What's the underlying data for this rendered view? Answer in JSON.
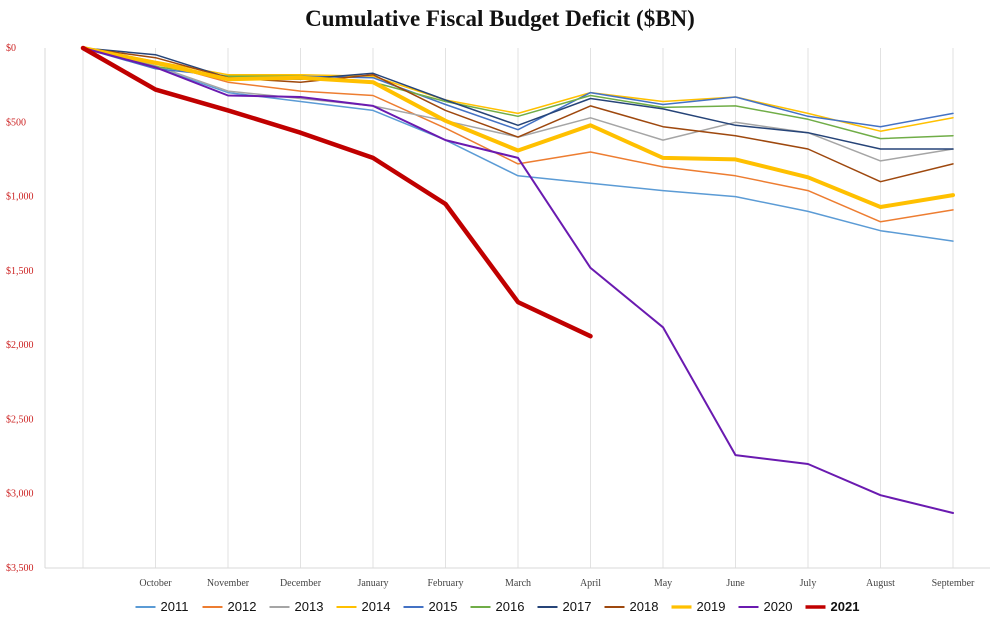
{
  "chart_data": {
    "type": "line",
    "title": "Cumulative Fiscal Budget Deficit ($BN)",
    "xlabel": "",
    "ylabel": "",
    "categories": [
      "",
      "October",
      "November",
      "December",
      "January",
      "February",
      "March",
      "April",
      "May",
      "June",
      "July",
      "August",
      "September"
    ],
    "y_tick_labels": [
      "$0",
      "$500",
      "$1,000",
      "$1,500",
      "$2,000",
      "$2,500",
      "$3,000",
      "$3,500"
    ],
    "y_tick_values": [
      0,
      -500,
      -1000,
      -1500,
      -2000,
      -2500,
      -3000,
      -3500
    ],
    "ylim": [
      -3500,
      0
    ],
    "grid": "vertical",
    "legend": "bottom",
    "series": [
      {
        "name": "2011",
        "color": "#5b9bd5",
        "width": 1.5,
        "values": [
          0,
          -130,
          -300,
          -360,
          -420,
          -620,
          -860,
          -910,
          -960,
          -1000,
          -1100,
          -1230,
          -1300
        ]
      },
      {
        "name": "2012",
        "color": "#ed7d31",
        "width": 1.5,
        "values": [
          0,
          -95,
          -230,
          -290,
          -320,
          -540,
          -780,
          -700,
          -800,
          -860,
          -960,
          -1170,
          -1090
        ]
      },
      {
        "name": "2013",
        "color": "#a5a5a5",
        "width": 1.5,
        "values": [
          0,
          -120,
          -290,
          -340,
          -390,
          -490,
          -600,
          -470,
          -620,
          -500,
          -570,
          -760,
          -680
        ]
      },
      {
        "name": "2014",
        "color": "#ffc000",
        "width": 1.5,
        "values": [
          0,
          -90,
          -180,
          -180,
          -190,
          -350,
          -440,
          -300,
          -360,
          -330,
          -440,
          -560,
          -470
        ]
      },
      {
        "name": "2015",
        "color": "#4472c4",
        "width": 1.5,
        "values": [
          0,
          -140,
          -190,
          -190,
          -200,
          -380,
          -550,
          -300,
          -380,
          -330,
          -460,
          -530,
          -440
        ]
      },
      {
        "name": "2016",
        "color": "#70ad47",
        "width": 1.5,
        "values": [
          0,
          -125,
          -190,
          -190,
          -230,
          -360,
          -460,
          -320,
          -400,
          -390,
          -480,
          -610,
          -590
        ]
      },
      {
        "name": "2017",
        "color": "#264478",
        "width": 1.5,
        "values": [
          0,
          -45,
          -200,
          -210,
          -170,
          -350,
          -520,
          -340,
          -410,
          -520,
          -570,
          -680,
          -680
        ]
      },
      {
        "name": "2018",
        "color": "#9e480e",
        "width": 1.5,
        "values": [
          0,
          -65,
          -200,
          -230,
          -180,
          -420,
          -600,
          -390,
          -530,
          -590,
          -680,
          -900,
          -780
        ]
      },
      {
        "name": "2019",
        "color": "#ffc000",
        "width": 4,
        "values": [
          0,
          -100,
          -210,
          -200,
          -230,
          -490,
          -690,
          -520,
          -740,
          -750,
          -870,
          -1070,
          -990
        ]
      },
      {
        "name": "2020",
        "color": "#6a1ab0",
        "width": 2,
        "values": [
          0,
          -130,
          -320,
          -330,
          -390,
          -620,
          -740,
          -1480,
          -1880,
          -2740,
          -2800,
          -3010,
          -3130
        ]
      },
      {
        "name": "2021",
        "color": "#c00000",
        "width": 4.5,
        "values": [
          0,
          -280,
          -420,
          -570,
          -740,
          -1050,
          -1710,
          -1940,
          null,
          null,
          null,
          null,
          null
        ]
      }
    ]
  }
}
